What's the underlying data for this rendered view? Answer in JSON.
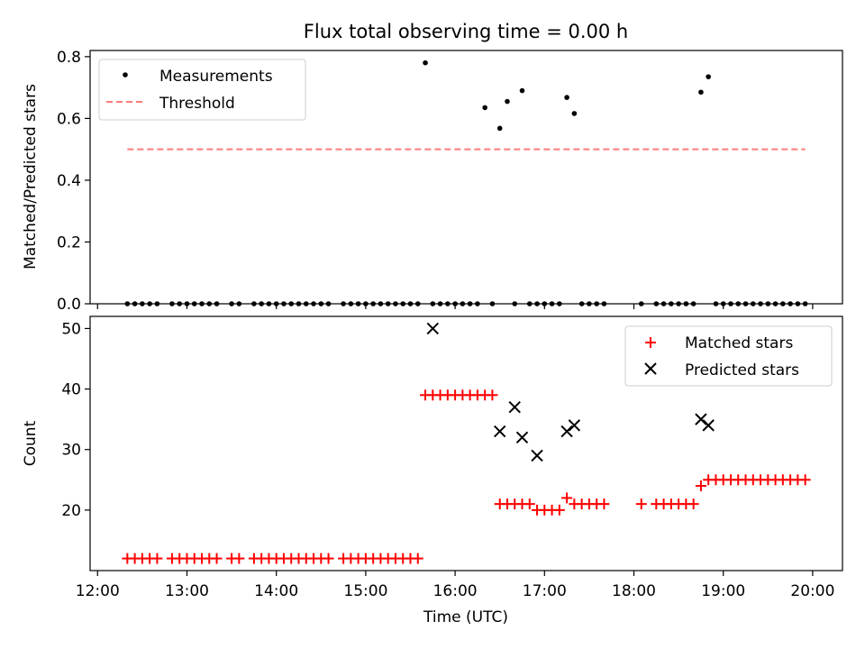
{
  "figure": {
    "title": "Flux total observing time = 0.00 h",
    "xlabel": "Time (UTC)"
  },
  "chart_data": [
    {
      "type": "scatter",
      "ylabel": "Matched/Predicted stars",
      "ylim": [
        0,
        0.82
      ],
      "xlim": [
        "11:55",
        "20:20"
      ],
      "yticks": [
        "0.0",
        "0.2",
        "0.4",
        "0.6",
        "0.8"
      ],
      "legend_position": "top-left",
      "grid": false,
      "series": [
        {
          "name": "Measurements",
          "kind": "scatter",
          "color": "#000000",
          "x": [
            "12:20",
            "12:25",
            "12:30",
            "12:35",
            "12:40",
            "12:50",
            "12:55",
            "13:00",
            "13:05",
            "13:10",
            "13:15",
            "13:20",
            "13:30",
            "13:35",
            "13:45",
            "13:50",
            "13:55",
            "14:00",
            "14:05",
            "14:10",
            "14:15",
            "14:20",
            "14:25",
            "14:30",
            "14:35",
            "14:45",
            "14:50",
            "14:55",
            "15:00",
            "15:05",
            "15:10",
            "15:15",
            "15:20",
            "15:25",
            "15:30",
            "15:35",
            "15:40",
            "15:45",
            "15:50",
            "15:55",
            "16:00",
            "16:05",
            "16:10",
            "16:15",
            "16:20",
            "16:25",
            "16:30",
            "16:35",
            "16:40",
            "16:45",
            "16:50",
            "16:55",
            "17:00",
            "17:05",
            "17:10",
            "17:15",
            "17:20",
            "17:25",
            "17:30",
            "17:35",
            "17:40",
            "18:05",
            "18:15",
            "18:20",
            "18:25",
            "18:30",
            "18:35",
            "18:40",
            "18:45",
            "18:50",
            "18:55",
            "19:00",
            "19:05",
            "19:10",
            "19:15",
            "19:20",
            "19:25",
            "19:30",
            "19:35",
            "19:40",
            "19:45",
            "19:50",
            "19:55"
          ],
          "y": [
            0,
            0,
            0,
            0,
            0,
            0,
            0,
            0,
            0,
            0,
            0,
            0,
            0,
            0,
            0,
            0,
            0,
            0,
            0,
            0,
            0,
            0,
            0,
            0,
            0,
            0,
            0,
            0,
            0,
            0,
            0,
            0,
            0,
            0,
            0,
            0,
            0.78,
            0,
            0,
            0,
            0,
            0,
            0,
            0,
            0.635,
            0,
            0.568,
            0.655,
            0,
            0.69,
            0,
            0,
            0,
            0,
            0,
            0.668,
            0.616,
            0,
            0,
            0,
            0,
            0,
            0,
            0,
            0,
            0,
            0,
            0,
            0.685,
            0.735,
            0,
            0,
            0,
            0,
            0,
            0,
            0,
            0,
            0,
            0,
            0,
            0,
            0
          ]
        },
        {
          "name": "Threshold",
          "kind": "dashed-line",
          "color": "#ff7b7b",
          "x": [
            "12:20",
            "19:55"
          ],
          "y": [
            0.5,
            0.5
          ]
        }
      ]
    },
    {
      "type": "scatter",
      "ylabel": "Count",
      "ylim": [
        10,
        52
      ],
      "xlim": [
        "11:55",
        "20:20"
      ],
      "yticks": [
        "20",
        "30",
        "40",
        "50"
      ],
      "xticks": [
        "12:00",
        "13:00",
        "14:00",
        "15:00",
        "16:00",
        "17:00",
        "18:00",
        "19:00",
        "20:00"
      ],
      "legend_position": "top-right",
      "grid": false,
      "series": [
        {
          "name": "Matched stars",
          "marker": "plus",
          "color": "#ff0000",
          "x": [
            "12:20",
            "12:25",
            "12:30",
            "12:35",
            "12:40",
            "12:50",
            "12:55",
            "13:00",
            "13:05",
            "13:10",
            "13:15",
            "13:20",
            "13:30",
            "13:35",
            "13:45",
            "13:50",
            "13:55",
            "14:00",
            "14:05",
            "14:10",
            "14:15",
            "14:20",
            "14:25",
            "14:30",
            "14:35",
            "14:45",
            "14:50",
            "14:55",
            "15:00",
            "15:05",
            "15:10",
            "15:15",
            "15:20",
            "15:25",
            "15:30",
            "15:35",
            "15:40",
            "15:45",
            "15:50",
            "15:55",
            "16:00",
            "16:05",
            "16:10",
            "16:15",
            "16:20",
            "16:25",
            "16:30",
            "16:35",
            "16:40",
            "16:45",
            "16:50",
            "16:55",
            "17:00",
            "17:05",
            "17:10",
            "17:15",
            "17:20",
            "17:25",
            "17:30",
            "17:35",
            "17:40",
            "18:05",
            "18:15",
            "18:20",
            "18:25",
            "18:30",
            "18:35",
            "18:40",
            "18:45",
            "18:50",
            "18:55",
            "19:00",
            "19:05",
            "19:10",
            "19:15",
            "19:20",
            "19:25",
            "19:30",
            "19:35",
            "19:40",
            "19:45",
            "19:50",
            "19:55"
          ],
          "y": [
            12,
            12,
            12,
            12,
            12,
            12,
            12,
            12,
            12,
            12,
            12,
            12,
            12,
            12,
            12,
            12,
            12,
            12,
            12,
            12,
            12,
            12,
            12,
            12,
            12,
            12,
            12,
            12,
            12,
            12,
            12,
            12,
            12,
            12,
            12,
            12,
            39,
            39,
            39,
            39,
            39,
            39,
            39,
            39,
            39,
            39,
            21,
            21,
            21,
            21,
            21,
            20,
            20,
            20,
            20,
            22,
            21,
            21,
            21,
            21,
            21,
            21,
            21,
            21,
            21,
            21,
            21,
            21,
            24,
            25,
            25,
            25,
            25,
            25,
            25,
            25,
            25,
            25,
            25,
            25,
            25,
            25,
            25
          ]
        },
        {
          "name": "Predicted stars",
          "marker": "x",
          "color": "#000000",
          "x": [
            "15:45",
            "16:30",
            "16:40",
            "16:45",
            "16:55",
            "17:15",
            "17:20",
            "18:45",
            "18:50"
          ],
          "y": [
            50,
            33,
            37,
            32,
            29,
            33,
            34,
            35,
            34
          ]
        }
      ]
    }
  ]
}
